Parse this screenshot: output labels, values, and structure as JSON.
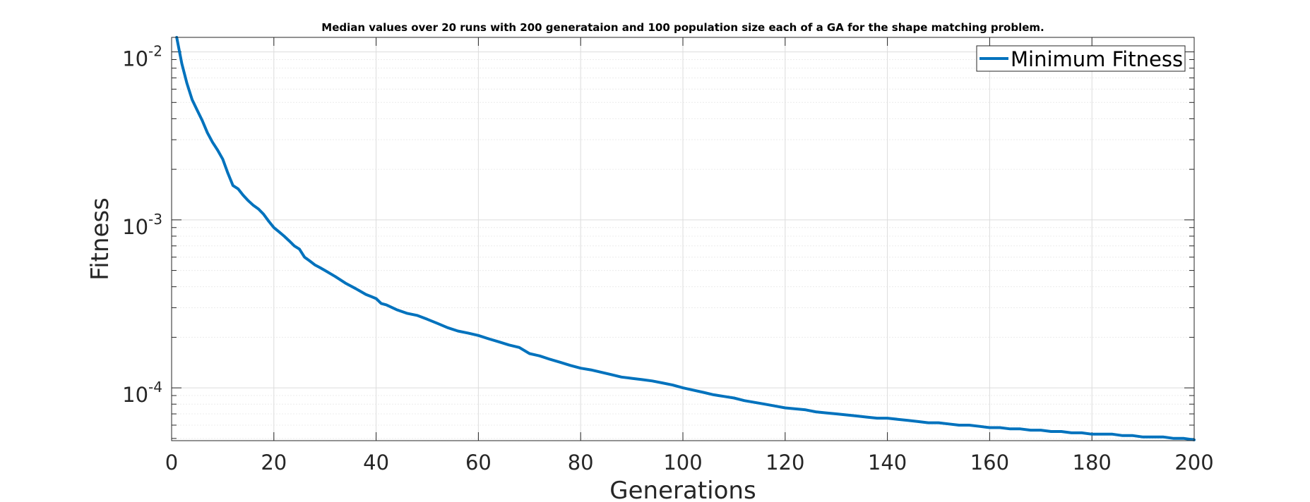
{
  "chart_data": {
    "type": "line",
    "title": "Median values over 20 runs with 200 generataion and 100 population size each of a GA for the shape matching problem.",
    "xlabel": "Generations",
    "ylabel": "Fitness",
    "xlim": [
      0,
      200
    ],
    "ylim": [
      4.85e-05,
      0.0122
    ],
    "yscale": "log",
    "grid": true,
    "legend_position": "top-right",
    "x_ticks": [
      0,
      20,
      40,
      60,
      80,
      100,
      120,
      140,
      160,
      180,
      200
    ],
    "y_ticks": [
      {
        "value": 0.0001,
        "base": "10",
        "exp": "-4"
      },
      {
        "value": 0.001,
        "base": "10",
        "exp": "-3"
      },
      {
        "value": 0.01,
        "base": "10",
        "exp": "-2"
      }
    ],
    "series": [
      {
        "name": "Minimum Fitness",
        "color": "#0072BD",
        "x": [
          1,
          2,
          3,
          4,
          5,
          6,
          7,
          8,
          9,
          10,
          11,
          12,
          13,
          14,
          15,
          16,
          17,
          18,
          19,
          20,
          21,
          22,
          23,
          24,
          25,
          26,
          27,
          28,
          29,
          30,
          32,
          34,
          36,
          38,
          39,
          40,
          41,
          42,
          44,
          46,
          48,
          50,
          52,
          54,
          56,
          58,
          60,
          62,
          64,
          66,
          68,
          70,
          72,
          74,
          76,
          78,
          80,
          82,
          84,
          86,
          88,
          90,
          92,
          94,
          96,
          98,
          100,
          102,
          104,
          106,
          108,
          110,
          112,
          114,
          116,
          118,
          120,
          122,
          124,
          126,
          128,
          130,
          132,
          134,
          136,
          138,
          140,
          142,
          144,
          146,
          148,
          150,
          152,
          154,
          156,
          158,
          160,
          162,
          164,
          166,
          168,
          170,
          172,
          174,
          176,
          178,
          180,
          182,
          184,
          186,
          188,
          190,
          192,
          194,
          196,
          198,
          200
        ],
        "y": [
          0.0122,
          0.0085,
          0.0065,
          0.0052,
          0.0045,
          0.0039,
          0.0033,
          0.0029,
          0.0026,
          0.0023,
          0.0019,
          0.0016,
          0.00153,
          0.0014,
          0.0013,
          0.00122,
          0.00116,
          0.00108,
          0.00098,
          0.0009,
          0.00085,
          0.0008,
          0.00075,
          0.0007,
          0.00067,
          0.0006,
          0.00057,
          0.00054,
          0.00052,
          0.0005,
          0.00046,
          0.00042,
          0.00039,
          0.00036,
          0.00035,
          0.00034,
          0.000318,
          0.000312,
          0.000292,
          0.000278,
          0.00027,
          0.000256,
          0.000242,
          0.000228,
          0.000218,
          0.000212,
          0.000205,
          0.000196,
          0.000188,
          0.00018,
          0.000174,
          0.00016,
          0.000155,
          0.000148,
          0.000142,
          0.000136,
          0.000131,
          0.000128,
          0.000124,
          0.00012,
          0.000116,
          0.000114,
          0.000112,
          0.00011,
          0.000107,
          0.000104,
          0.0001,
          9.7e-05,
          9.4e-05,
          9.1e-05,
          8.9e-05,
          8.7e-05,
          8.4e-05,
          8.2e-05,
          8e-05,
          7.8e-05,
          7.6e-05,
          7.5e-05,
          7.4e-05,
          7.2e-05,
          7.1e-05,
          7e-05,
          6.9e-05,
          6.8e-05,
          6.7e-05,
          6.6e-05,
          6.6e-05,
          6.5e-05,
          6.4e-05,
          6.3e-05,
          6.2e-05,
          6.2e-05,
          6.1e-05,
          6e-05,
          6e-05,
          5.9e-05,
          5.8e-05,
          5.8e-05,
          5.7e-05,
          5.7e-05,
          5.6e-05,
          5.6e-05,
          5.5e-05,
          5.5e-05,
          5.4e-05,
          5.4e-05,
          5.3e-05,
          5.3e-05,
          5.3e-05,
          5.2e-05,
          5.2e-05,
          5.1e-05,
          5.1e-05,
          5.1e-05,
          5e-05,
          5e-05,
          4.9e-05
        ]
      }
    ]
  }
}
